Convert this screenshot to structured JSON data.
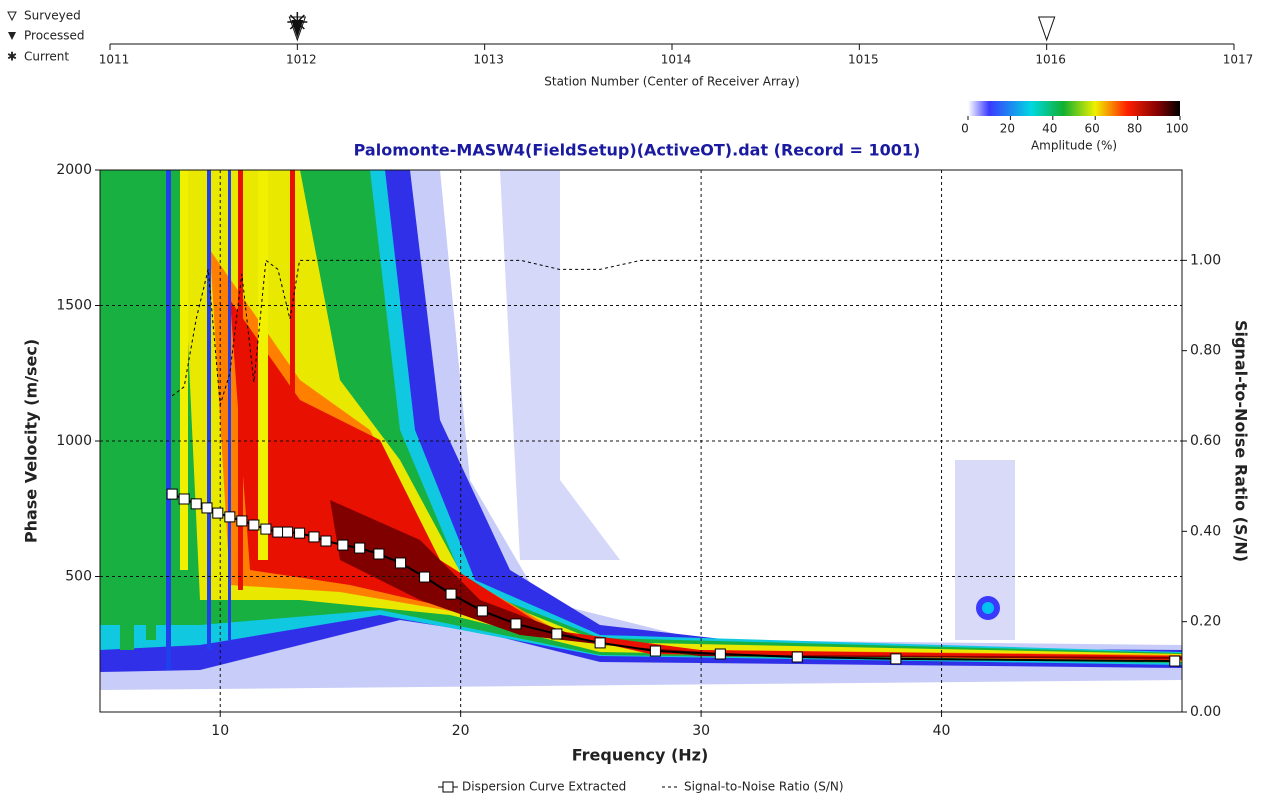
{
  "chart_data": {
    "type": "dispersion",
    "title": "Palomonte-MASW4(FieldSetup)(ActiveOT).dat (Record = 1001)",
    "x_label": "Frequency (Hz)",
    "y_label": "Phase Velocity (m/sec)",
    "y2_label": "Signal-to-Noise Ratio (S/N)",
    "xlim": [
      5,
      50
    ],
    "xticks": [
      10,
      20,
      30,
      40
    ],
    "ylim": [
      0,
      2000
    ],
    "yticks": [
      500,
      1000,
      1500,
      2000
    ],
    "y2lim": [
      0,
      1.2
    ],
    "y2ticks": [
      {
        "value": 0,
        "label": "0.00"
      },
      {
        "value": 0.2,
        "label": "0.20"
      },
      {
        "value": 0.4,
        "label": "0.40"
      },
      {
        "value": 0.6,
        "label": "0.60"
      },
      {
        "value": 0.8,
        "label": "0.80"
      },
      {
        "value": 1,
        "label": "1.00"
      }
    ],
    "grid": true,
    "series": [
      {
        "name": "Dispersion Curve Extracted",
        "color": "#000000",
        "x": [
          8.0,
          8.5,
          9.0,
          9.45,
          9.9,
          10.4,
          10.9,
          11.4,
          11.9,
          12.4,
          12.8,
          13.3,
          13.9,
          14.4,
          15.1,
          15.8,
          16.6,
          17.5,
          18.5,
          19.6,
          20.9,
          22.3,
          24.0,
          25.8,
          28.1,
          30.8,
          34.0,
          38.1,
          49.7
        ],
        "values": [
          804,
          786,
          768,
          753,
          734,
          720,
          705,
          690,
          675,
          664,
          664,
          660,
          646,
          631,
          616,
          605,
          583,
          550,
          498,
          435,
          373,
          325,
          288,
          255,
          225,
          214,
          203,
          196,
          188
        ]
      },
      {
        "name": "Signal-to-Noise Ratio (S/N)",
        "color": "#000000",
        "axis": "y2",
        "x": [
          8.0,
          8.5,
          9.0,
          9.5,
          10.0,
          10.4,
          10.9,
          11.4,
          11.9,
          12.4,
          12.9,
          13.3,
          15.4,
          17.5,
          22.5,
          24.1,
          25.8,
          27.5,
          50.0
        ],
        "values": [
          0.7,
          0.72,
          0.87,
          0.98,
          0.68,
          0.75,
          0.97,
          0.73,
          1.0,
          0.98,
          0.87,
          1.0,
          1.0,
          1.0,
          1.0,
          0.98,
          0.98,
          1.0,
          1.0
        ]
      }
    ],
    "colorbar": {
      "label": "Amplitude (%)",
      "lim": [
        0,
        100
      ],
      "ticks": [
        0,
        20,
        40,
        60,
        80,
        100
      ]
    },
    "station_axis": {
      "label": "Station Number (Center of Receiver Array)",
      "lim": [
        1011,
        1017
      ],
      "ticks": [
        1011,
        1012,
        1013,
        1014,
        1015,
        1016,
        1017
      ],
      "legend": [
        "Surveyed",
        "Processed",
        "Current"
      ],
      "surveyed": [
        1012,
        1016
      ],
      "processed": [
        1012
      ],
      "current": [
        1012
      ]
    }
  }
}
